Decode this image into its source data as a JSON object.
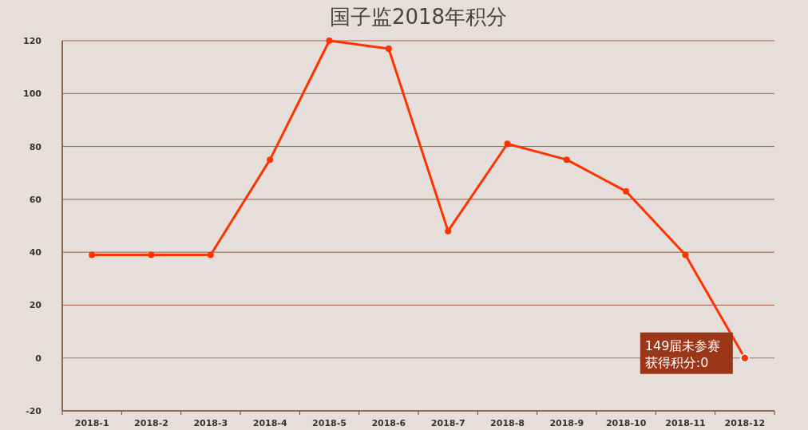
{
  "chart_data": {
    "type": "line",
    "title": "国子监2018年积分",
    "categories": [
      "2018-1",
      "2018-2",
      "2018-3",
      "2018-4",
      "2018-5",
      "2018-6",
      "2018-7",
      "2018-8",
      "2018-9",
      "2018-10",
      "2018-11",
      "2018-12"
    ],
    "series": [
      {
        "color": "#ff3300",
        "values": [
          39,
          39,
          39,
          75,
          120,
          117,
          48,
          81,
          75,
          63,
          39,
          0
        ]
      }
    ],
    "ylim": [
      -20,
      120
    ],
    "yticks": [
      -20,
      0,
      20,
      40,
      60,
      80,
      100,
      120
    ],
    "grid": "y",
    "marker": "circle",
    "line_style": "solid",
    "annotations": [
      {
        "text": "149届未参赛",
        "x": "2018-12",
        "y": 0
      },
      "获得积分:0"
    ]
  }
}
